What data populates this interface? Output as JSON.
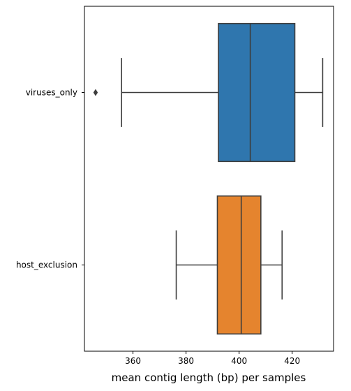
{
  "chart_data": {
    "type": "boxplot",
    "orientation": "horizontal",
    "title": "",
    "xlabel": "mean contig length (bp) per samples",
    "ylabel": "",
    "xlim": [
      341.7,
      435.6
    ],
    "xticks": [
      360,
      380,
      400,
      420
    ],
    "grid": false,
    "series": [
      {
        "name": "viruses_only",
        "color": "#2f76ae",
        "whisker_low": 355.7,
        "q1": 392.2,
        "median": 404.2,
        "q3": 421.0,
        "whisker_high": 431.5,
        "outliers": [
          345.9
        ]
      },
      {
        "name": "host_exclusion",
        "color": "#e5842e",
        "whisker_low": 376.3,
        "q1": 391.8,
        "median": 400.8,
        "q3": 408.2,
        "whisker_high": 416.2,
        "outliers": []
      }
    ]
  }
}
